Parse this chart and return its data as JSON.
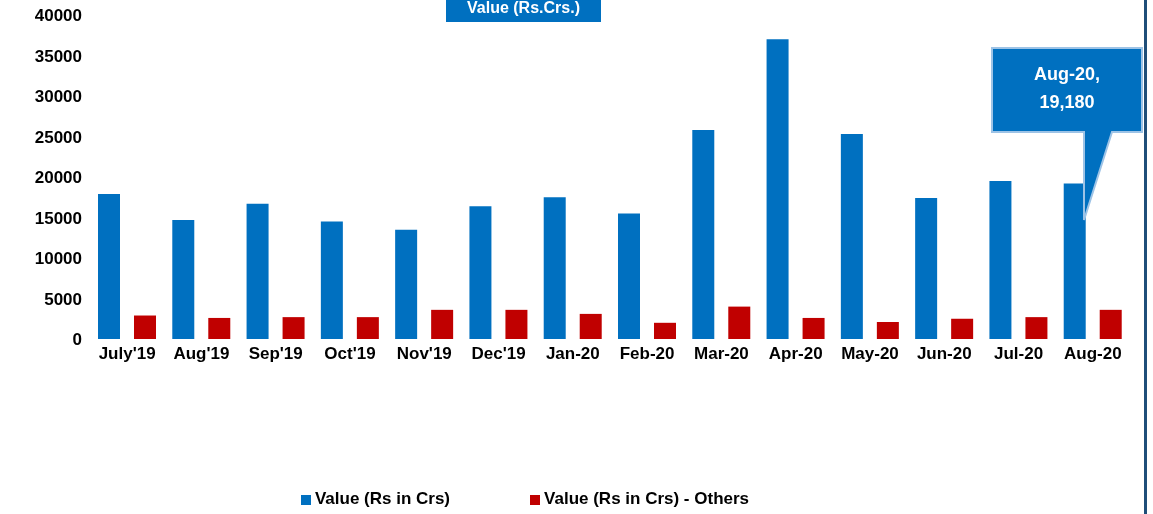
{
  "chart_data": {
    "type": "bar",
    "title": "Value (Rs.Crs.)",
    "categories": [
      "July'19",
      "Aug'19",
      "Sep'19",
      "Oct'19",
      "Nov'19",
      "Dec'19",
      "Jan-20",
      "Feb-20",
      "Mar-20",
      "Apr-20",
      "May-20",
      "Jun-20",
      "Jul-20",
      "Aug-20"
    ],
    "series": [
      {
        "name": "Value (Rs in Crs)",
        "color": "#0070c0",
        "values": [
          17900,
          14700,
          16700,
          14500,
          13500,
          16400,
          17500,
          15500,
          25800,
          37000,
          25300,
          17400,
          19500,
          19200
        ]
      },
      {
        "name": "Value (Rs in Crs) - Others",
        "color": "#c00000",
        "values": [
          2900,
          2600,
          2700,
          2700,
          3600,
          3600,
          3100,
          2000,
          4000,
          2600,
          2100,
          2500,
          2700,
          3600
        ]
      }
    ],
    "ylim": [
      0,
      40000
    ],
    "yticks": [
      0,
      5000,
      10000,
      15000,
      20000,
      25000,
      30000,
      35000,
      40000
    ],
    "grid": false,
    "legend": "bottom",
    "annotations": [
      "Aug-20, 19,180"
    ]
  }
}
